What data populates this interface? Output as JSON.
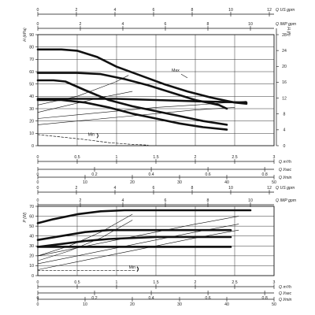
{
  "chart_data": [
    {
      "type": "line",
      "panel": "head",
      "ylabel_left": "H (kPa)",
      "ylabel_right": "H (ft)",
      "ylim_left": [
        0,
        90
      ],
      "ylim_right": [
        0,
        28
      ],
      "left_ticks": [
        "0",
        "10",
        "20",
        "30",
        "40",
        "50",
        "60",
        "70",
        "80",
        "90"
      ],
      "right_ticks": [
        "0",
        "4",
        "8",
        "12",
        "16",
        "20",
        "24",
        "28"
      ],
      "top_axes": [
        {
          "label": "Q US gpm",
          "ticks": [
            "0",
            "2",
            "4",
            "6",
            "8",
            "10",
            "12"
          ],
          "max": 12
        },
        {
          "label": "Q IMP gpm",
          "ticks": [
            "0",
            "2",
            "4",
            "6",
            "8",
            "10"
          ],
          "max": 10
        }
      ],
      "bottom_axes": [
        {
          "label": "Q m³/h",
          "ticks": [
            "0",
            "0.5",
            "1",
            "1.5",
            "2",
            "2.5",
            "3"
          ],
          "max": 3
        },
        {
          "label": "Q l/sec",
          "ticks": [
            "0",
            "0.2",
            "0.4",
            "0.6",
            "0.8"
          ],
          "max": 0.833
        },
        {
          "label": "Q l/min",
          "ticks": [
            "0",
            "10",
            "20",
            "30",
            "40",
            "50"
          ],
          "max": 50
        }
      ],
      "annotations": [
        "Max",
        "Min"
      ],
      "series": [
        {
          "style": "bold",
          "x": [
            0,
            0.3,
            0.5,
            0.75,
            1,
            1.3,
            1.6,
            1.9,
            2.2,
            2.5,
            2.65
          ],
          "y": [
            78,
            78,
            77,
            72,
            64,
            57,
            50,
            44,
            39,
            35,
            34
          ]
        },
        {
          "style": "bold",
          "x": [
            0,
            0.25,
            0.5,
            0.8,
            1.1,
            1.4,
            1.7,
            2,
            2.3,
            2.4
          ],
          "y": [
            59,
            59,
            59,
            58,
            54,
            49,
            43,
            37,
            33,
            30
          ]
        },
        {
          "style": "bold",
          "x": [
            0,
            0.2,
            0.35,
            0.6,
            0.9,
            1.2,
            1.5,
            1.8,
            2.1,
            2.4
          ],
          "y": [
            53,
            53,
            52,
            45,
            37,
            32,
            28,
            24,
            20,
            17
          ]
        },
        {
          "style": "bold",
          "x": [
            0,
            0.5,
            1,
            1.5,
            2,
            2.65
          ],
          "y": [
            38,
            38,
            38,
            37,
            36,
            35
          ]
        },
        {
          "style": "bold",
          "x": [
            0,
            0.3,
            0.6,
            0.9,
            1.2,
            1.5,
            1.8,
            2.1,
            2.4
          ],
          "y": [
            37,
            37,
            35,
            31,
            26,
            22,
            18,
            15,
            13
          ]
        },
        {
          "style": "thin",
          "x": [
            0,
            0.5,
            1,
            1.15
          ],
          "y": [
            33,
            40,
            52,
            57
          ]
        },
        {
          "style": "thin",
          "x": [
            0,
            0.5,
            1,
            1.5,
            2,
            2.65
          ],
          "y": [
            22,
            25,
            28,
            31,
            33,
            36
          ]
        },
        {
          "style": "thin",
          "x": [
            0,
            0.5,
            1,
            1.5,
            2,
            2.5
          ],
          "y": [
            17,
            20,
            23,
            26,
            29,
            31
          ]
        },
        {
          "style": "thin",
          "x": [
            0,
            0.4,
            0.8,
            1.2
          ],
          "y": [
            27,
            33,
            39,
            44
          ]
        },
        {
          "style": "dashed",
          "x": [
            0,
            0.3,
            0.6,
            0.9,
            1.2,
            1.4
          ],
          "y": [
            9,
            7,
            5,
            2.5,
            1,
            0.5
          ]
        }
      ]
    },
    {
      "type": "line",
      "panel": "power",
      "ylabel_left": "P (W)",
      "ylim_left": [
        0,
        70
      ],
      "left_ticks": [
        "0",
        "10",
        "20",
        "30",
        "40",
        "50",
        "60",
        "70"
      ],
      "top_axes": [
        {
          "label": "Q US gpm",
          "ticks": [
            "0",
            "2",
            "4",
            "6",
            "8",
            "10",
            "12"
          ],
          "max": 12
        },
        {
          "label": "Q IMP gpm",
          "ticks": [
            "0",
            "2",
            "4",
            "6",
            "8",
            "10"
          ],
          "max": 10
        }
      ],
      "bottom_axes": [
        {
          "label": "Q m³/h",
          "ticks": [
            "0",
            "0.5",
            "1",
            "1.5",
            "2",
            "2.5",
            "3"
          ],
          "max": 3
        },
        {
          "label": "Q l/sec",
          "ticks": [
            "0",
            "0.2",
            "0.4",
            "0.6",
            "0.8"
          ],
          "max": 0.833
        },
        {
          "label": "Q l/min",
          "ticks": [
            "0",
            "10",
            "20",
            "30",
            "40",
            "50"
          ],
          "max": 50
        }
      ],
      "annotations": [
        "Max",
        "Min"
      ],
      "series": [
        {
          "style": "bold",
          "x": [
            0,
            0.2,
            0.5,
            0.8,
            1.1,
            1.4,
            1.8,
            2.2,
            2.6,
            2.7
          ],
          "y": [
            53,
            57,
            62,
            65,
            66,
            66,
            66,
            66,
            66,
            66
          ]
        },
        {
          "style": "bold",
          "x": [
            0,
            0.3,
            0.6,
            0.9,
            1.2,
            1.5,
            1.8,
            2.1,
            2.45
          ],
          "y": [
            36,
            40,
            44,
            46,
            46,
            46,
            46,
            46,
            46
          ]
        },
        {
          "style": "bold",
          "x": [
            0,
            0.3,
            0.6,
            0.9,
            1.2,
            1.5,
            1.8,
            2.1,
            2.45
          ],
          "y": [
            29,
            32,
            35,
            37,
            38,
            39,
            39,
            39,
            39
          ]
        },
        {
          "style": "bold",
          "x": [
            0,
            0.4,
            0.8,
            1.2,
            1.6,
            2,
            2.45
          ],
          "y": [
            29,
            29,
            29,
            29,
            29,
            29,
            29
          ]
        },
        {
          "style": "thin",
          "x": [
            0,
            0.5,
            1,
            1.5,
            2,
            2.55
          ],
          "y": [
            20,
            28,
            36,
            44,
            52,
            60
          ]
        },
        {
          "style": "thin",
          "x": [
            0,
            0.5,
            1,
            1.5,
            2,
            2.55
          ],
          "y": [
            12,
            20,
            28,
            36,
            44,
            52
          ]
        },
        {
          "style": "thin",
          "x": [
            0,
            0.5,
            1,
            1.5,
            2,
            2.55
          ],
          "y": [
            6,
            14,
            22,
            30,
            38,
            46
          ]
        },
        {
          "style": "thin",
          "x": [
            0,
            0.4,
            0.8,
            1.2
          ],
          "y": [
            20,
            30,
            44,
            62
          ]
        },
        {
          "style": "thin",
          "x": [
            0,
            0.4,
            0.8,
            1.2
          ],
          "y": [
            15,
            25,
            38,
            56
          ]
        },
        {
          "style": "dashed",
          "x": [
            0,
            0.5,
            1,
            1.25
          ],
          "y": [
            5,
            5,
            5,
            5
          ]
        }
      ]
    }
  ]
}
